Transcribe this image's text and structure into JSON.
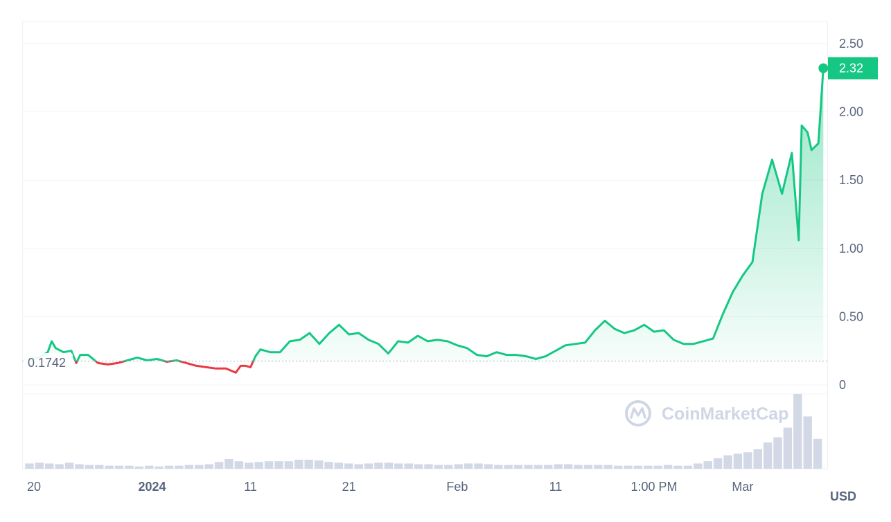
{
  "chart_data": {
    "type": "area",
    "currency": "USD",
    "watermark": "CoinMarketCap",
    "baseline_value": 0.1742,
    "baseline_label": "0.1742",
    "last_value_label": "2.32",
    "ylim": [
      0,
      2.5
    ],
    "yticks": [
      {
        "value": 0,
        "label": "0"
      },
      {
        "value": 0.5,
        "label": "0.50"
      },
      {
        "value": 1.0,
        "label": "1.00"
      },
      {
        "value": 1.5,
        "label": "1.50"
      },
      {
        "value": 2.0,
        "label": "2.00"
      },
      {
        "value": 2.5,
        "label": "2.50"
      }
    ],
    "xlim": [
      -1.2,
      80.6
    ],
    "xticks": [
      {
        "x": 0,
        "label": "20",
        "bold": false
      },
      {
        "x": 12,
        "label": "2024",
        "bold": true
      },
      {
        "x": 22,
        "label": "11",
        "bold": false
      },
      {
        "x": 32,
        "label": "21",
        "bold": false
      },
      {
        "x": 43,
        "label": "Feb",
        "bold": false
      },
      {
        "x": 53,
        "label": "11",
        "bold": false
      },
      {
        "x": 63,
        "label": "1:00 PM",
        "bold": false
      },
      {
        "x": 72,
        "label": "Mar",
        "bold": false
      }
    ],
    "colors": {
      "up": "#16c784",
      "down": "#ea3943",
      "volume": "#d3d8e6"
    },
    "series": [
      {
        "values": [
          [
            -0.5,
            0.18
          ],
          [
            0.5,
            0.2
          ],
          [
            1.4,
            0.24
          ],
          [
            1.8,
            0.32
          ],
          [
            2.2,
            0.27
          ],
          [
            3,
            0.24
          ],
          [
            3.8,
            0.25
          ],
          [
            4.3,
            0.16
          ],
          [
            4.7,
            0.22
          ],
          [
            5.5,
            0.22
          ],
          [
            6.5,
            0.16
          ],
          [
            7.5,
            0.15
          ],
          [
            8.5,
            0.16
          ],
          [
            9.5,
            0.18
          ],
          [
            10.5,
            0.2
          ],
          [
            11.5,
            0.18
          ],
          [
            12.5,
            0.19
          ],
          [
            13.5,
            0.17
          ],
          [
            14.5,
            0.18
          ],
          [
            15.5,
            0.16
          ],
          [
            16.5,
            0.14
          ],
          [
            17.5,
            0.13
          ],
          [
            18.5,
            0.12
          ],
          [
            19.5,
            0.12
          ],
          [
            20.5,
            0.09
          ],
          [
            21,
            0.14
          ],
          [
            21.5,
            0.14
          ],
          [
            22,
            0.13
          ],
          [
            22.5,
            0.21
          ],
          [
            23,
            0.26
          ],
          [
            24,
            0.24
          ],
          [
            25,
            0.24
          ],
          [
            26,
            0.32
          ],
          [
            27,
            0.33
          ],
          [
            28,
            0.38
          ],
          [
            29,
            0.3
          ],
          [
            30,
            0.38
          ],
          [
            31,
            0.44
          ],
          [
            32,
            0.37
          ],
          [
            33,
            0.38
          ],
          [
            34,
            0.33
          ],
          [
            35,
            0.3
          ],
          [
            36,
            0.23
          ],
          [
            37,
            0.32
          ],
          [
            38,
            0.31
          ],
          [
            39,
            0.36
          ],
          [
            40,
            0.32
          ],
          [
            41,
            0.33
          ],
          [
            42,
            0.32
          ],
          [
            43,
            0.29
          ],
          [
            44,
            0.27
          ],
          [
            45,
            0.22
          ],
          [
            46,
            0.21
          ],
          [
            47,
            0.24
          ],
          [
            48,
            0.22
          ],
          [
            49,
            0.22
          ],
          [
            50,
            0.21
          ],
          [
            51,
            0.19
          ],
          [
            52,
            0.21
          ],
          [
            53,
            0.25
          ],
          [
            54,
            0.29
          ],
          [
            55,
            0.3
          ],
          [
            56,
            0.31
          ],
          [
            57,
            0.4
          ],
          [
            58,
            0.47
          ],
          [
            59,
            0.41
          ],
          [
            60,
            0.38
          ],
          [
            61,
            0.4
          ],
          [
            62,
            0.44
          ],
          [
            63,
            0.39
          ],
          [
            64,
            0.4
          ],
          [
            65,
            0.33
          ],
          [
            66,
            0.3
          ],
          [
            67,
            0.3
          ],
          [
            68,
            0.32
          ],
          [
            69,
            0.34
          ],
          [
            70,
            0.52
          ],
          [
            71,
            0.68
          ],
          [
            72,
            0.8
          ],
          [
            73,
            0.9
          ],
          [
            74,
            1.4
          ],
          [
            75,
            1.65
          ],
          [
            76,
            1.4
          ],
          [
            77,
            1.7
          ],
          [
            77.7,
            1.06
          ],
          [
            78,
            1.9
          ],
          [
            78.6,
            1.85
          ],
          [
            79,
            1.72
          ],
          [
            79.7,
            1.77
          ],
          [
            80.2,
            2.32
          ]
        ]
      }
    ],
    "volume": [
      0.07,
      0.08,
      0.07,
      0.06,
      0.08,
      0.06,
      0.05,
      0.05,
      0.04,
      0.04,
      0.04,
      0.03,
      0.04,
      0.03,
      0.04,
      0.04,
      0.05,
      0.05,
      0.06,
      0.09,
      0.13,
      0.1,
      0.08,
      0.09,
      0.1,
      0.1,
      0.1,
      0.12,
      0.12,
      0.11,
      0.09,
      0.08,
      0.07,
      0.06,
      0.07,
      0.08,
      0.08,
      0.07,
      0.07,
      0.06,
      0.06,
      0.05,
      0.05,
      0.06,
      0.07,
      0.07,
      0.06,
      0.05,
      0.05,
      0.05,
      0.05,
      0.05,
      0.05,
      0.06,
      0.06,
      0.05,
      0.05,
      0.05,
      0.05,
      0.04,
      0.04,
      0.04,
      0.04,
      0.04,
      0.05,
      0.04,
      0.04,
      0.07,
      0.1,
      0.14,
      0.18,
      0.2,
      0.22,
      0.26,
      0.35,
      0.42,
      0.55,
      1.0,
      0.7,
      0.4
    ]
  }
}
